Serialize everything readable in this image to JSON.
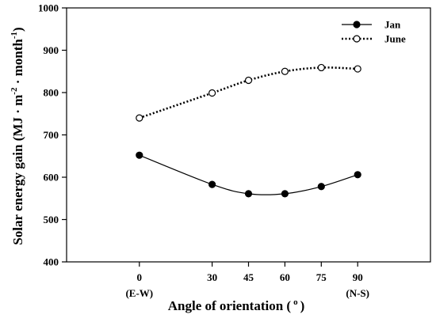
{
  "chart_data": {
    "type": "line",
    "title": "",
    "xlabel": "Angle of orientation ( o )",
    "xlabel_parts": {
      "main": "Angle of orientation (",
      "sup": "o",
      "close": ")"
    },
    "ylabel": "Solar energy gain (MJ · m-2 · month-1)",
    "ylabel_parts": {
      "pre": "Solar energy gain (MJ · m",
      "sup1": "-2",
      "mid": " · month",
      "sup2": "-1",
      "post": ")"
    },
    "x": [
      0,
      30,
      45,
      60,
      75,
      90
    ],
    "x_tick_labels": [
      "0",
      "30",
      "45",
      "60",
      "75",
      "90"
    ],
    "x_sub_labels": [
      {
        "x": 0,
        "text": "(E-W)"
      },
      {
        "x": 90,
        "text": "(N-S)"
      }
    ],
    "ylim": [
      400,
      1000
    ],
    "y_ticks": [
      400,
      500,
      600,
      700,
      800,
      900,
      1000
    ],
    "grid": false,
    "legend_position": "top-right",
    "series": [
      {
        "name": "Jan",
        "values": [
          652,
          583,
          561,
          561,
          578,
          606
        ],
        "marker": "filled-circle",
        "line_style": "solid",
        "color": "#000000"
      },
      {
        "name": "June",
        "values": [
          740,
          799,
          829,
          850,
          859,
          856
        ],
        "marker": "open-circle",
        "line_style": "dotted",
        "color": "#000000"
      }
    ]
  }
}
